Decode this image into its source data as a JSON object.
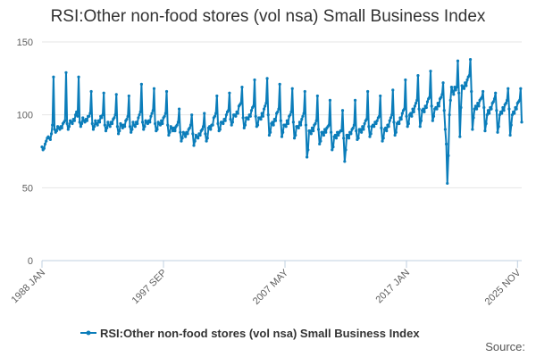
{
  "colors": {
    "series": "#0b7dba",
    "grid": "#e6e6e6",
    "axis": "#c0d0e0",
    "text": "#333333"
  },
  "source_label": "Source:",
  "chart_data": {
    "type": "line",
    "title": "RSI:Other non-food stores (vol nsa) Small Business Index",
    "xlabel": "",
    "ylabel": "",
    "ylim": [
      0,
      150
    ],
    "yticks": [
      0,
      50,
      100,
      150
    ],
    "legend": {
      "position": "bottom-center",
      "label": "RSI:Other non-food stores (vol nsa) Small Business Index"
    },
    "x_tick_labels": [
      {
        "label": "1988 JAN",
        "index": 0
      },
      {
        "label": "1997 SEP",
        "index": 116
      },
      {
        "label": "2007 MAY",
        "index": 232
      },
      {
        "label": "2017 JAN",
        "index": 348
      },
      {
        "label": "2025 NOV",
        "index": 454
      }
    ],
    "series": [
      {
        "name": "RSI:Other non-food stores (vol nsa) Small Business Index",
        "start": "1988 JAN",
        "end": "2025 NOV",
        "frequency": "monthly",
        "values": [
          78,
          76,
          77,
          80,
          82,
          84,
          85,
          84,
          83,
          87,
          93,
          126,
          90,
          88,
          89,
          92,
          91,
          90,
          92,
          91,
          94,
          95,
          96,
          129,
          94,
          90,
          92,
          96,
          95,
          94,
          97,
          96,
          100,
          102,
          99,
          126,
          95,
          92,
          94,
          98,
          96,
          95,
          97,
          96,
          99,
          99,
          101,
          116,
          94,
          90,
          92,
          96,
          94,
          93,
          96,
          95,
          99,
          98,
          100,
          115,
          93,
          89,
          91,
          95,
          93,
          92,
          95,
          94,
          97,
          98,
          100,
          114,
          92,
          87,
          89,
          94,
          93,
          91,
          93,
          92,
          96,
          97,
          99,
          113,
          92,
          88,
          90,
          95,
          93,
          92,
          95,
          94,
          98,
          100,
          102,
          121,
          95,
          90,
          92,
          96,
          95,
          94,
          96,
          95,
          99,
          101,
          103,
          118,
          94,
          89,
          90,
          95,
          94,
          93,
          96,
          94,
          98,
          99,
          101,
          116,
          93,
          86,
          88,
          92,
          91,
          89,
          91,
          89,
          92,
          93,
          95,
          104,
          88,
          82,
          84,
          88,
          87,
          85,
          88,
          87,
          90,
          91,
          93,
          100,
          87,
          79,
          82,
          86,
          85,
          84,
          87,
          86,
          89,
          90,
          92,
          101,
          87,
          82,
          84,
          91,
          92,
          90,
          93,
          93,
          98,
          99,
          101,
          113,
          94,
          89,
          90,
          95,
          95,
          94,
          97,
          96,
          100,
          102,
          103,
          115,
          97,
          93,
          95,
          100,
          100,
          99,
          102,
          101,
          106,
          107,
          108,
          119,
          98,
          91,
          93,
          98,
          98,
          97,
          100,
          99,
          103,
          105,
          106,
          124,
          99,
          92,
          93,
          98,
          98,
          97,
          101,
          99,
          104,
          106,
          108,
          125,
          100,
          86,
          88,
          94,
          95,
          93,
          97,
          96,
          101,
          102,
          104,
          121,
          96,
          85,
          88,
          93,
          93,
          92,
          96,
          94,
          99,
          100,
          102,
          118,
          95,
          84,
          86,
          92,
          92,
          91,
          95,
          93,
          97,
          99,
          101,
          116,
          93,
          71,
          76,
          89,
          89,
          87,
          91,
          89,
          93,
          94,
          96,
          113,
          90,
          80,
          82,
          88,
          88,
          86,
          90,
          88,
          91,
          92,
          93,
          110,
          88,
          76,
          78,
          85,
          86,
          84,
          88,
          86,
          88,
          89,
          89,
          103,
          84,
          68,
          76,
          86,
          86,
          84,
          88,
          87,
          90,
          91,
          93,
          110,
          89,
          83,
          84,
          90,
          90,
          88,
          92,
          90,
          94,
          96,
          97,
          116,
          92,
          85,
          87,
          92,
          93,
          92,
          95,
          94,
          96,
          98,
          99,
          113,
          91,
          82,
          84,
          90,
          91,
          89,
          93,
          92,
          96,
          98,
          100,
          117,
          95,
          86,
          88,
          94,
          95,
          94,
          98,
          97,
          101,
          103,
          104,
          124,
          99,
          92,
          94,
          100,
          101,
          99,
          104,
          102,
          106,
          108,
          110,
          127,
          104,
          92,
          96,
          103,
          104,
          102,
          106,
          105,
          109,
          111,
          112,
          130,
          106,
          96,
          99,
          104,
          105,
          104,
          108,
          106,
          111,
          112,
          114,
          122,
          103,
          90,
          80,
          53,
          72,
          100,
          110,
          119,
          116,
          114,
          119,
          117,
          119,
          137,
          115,
          85,
          105,
          120,
          119,
          118,
          122,
          120,
          124,
          126,
          127,
          138,
          116,
          90,
          98,
          104,
          106,
          104,
          108,
          106,
          110,
          111,
          112,
          116,
          105,
          89,
          94,
          100,
          103,
          101,
          105,
          104,
          108,
          109,
          111,
          115,
          103,
          88,
          92,
          100,
          102,
          101,
          105,
          103,
          107,
          108,
          110,
          118,
          104,
          86,
          93,
          100,
          102,
          101,
          105,
          104,
          108,
          109,
          110,
          118,
          95
        ]
      }
    ]
  }
}
